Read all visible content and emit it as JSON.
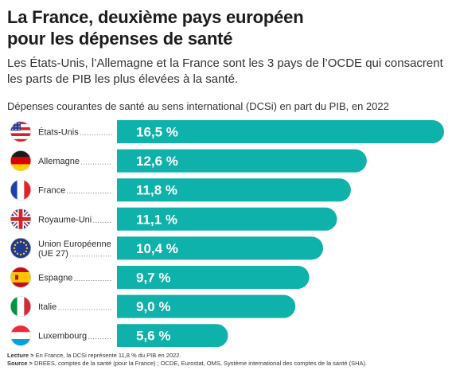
{
  "title_line1": "La France, deuxième pays européen",
  "title_line2": "pour les dépenses de santé",
  "subtitle": "Les États-Unis, l’Allemagne et la France sont les 3 pays de l’OCDE qui consacrent les parts de PIB les plus élevées à la santé.",
  "footer": {
    "lecture_label": "Lecture >",
    "lecture_text": "En France, la DCSi représente 11,8 % du PIB en 2022.",
    "source_label": "Source >",
    "source_text": "DREES, comptes de la santé (pour la France) ; OCDE, Eurostat, OMS, Système international des comptes de la santé (SHA)."
  },
  "colors": {
    "bar": "#0fb1ab",
    "text": "#1e1e1e"
  },
  "chart_data": {
    "type": "bar",
    "orientation": "horizontal",
    "title": "Dépenses courantes de santé au sens international (DCSi) en part du PIB, en 2022",
    "categories": [
      "États-Unis",
      "Allemagne",
      "France",
      "Royaume-Uni",
      "Union Européenne (UE 27)",
      "Espagne",
      "Italie",
      "Luxembourg"
    ],
    "category_lines": [
      [
        "États-Unis"
      ],
      [
        "Allemagne"
      ],
      [
        "France"
      ],
      [
        "Royaume-Uni"
      ],
      [
        "Union Européenne",
        "(UE 27)"
      ],
      [
        "Espagne"
      ],
      [
        "Italie"
      ],
      [
        "Luxembourg"
      ]
    ],
    "flags": [
      "flag-us-icon",
      "flag-de-icon",
      "flag-fr-icon",
      "flag-uk-icon",
      "flag-eu-icon",
      "flag-es-icon",
      "flag-it-icon",
      "flag-lu-icon"
    ],
    "values": [
      16.5,
      12.6,
      11.8,
      11.1,
      10.4,
      9.7,
      9.0,
      5.6
    ],
    "value_labels": [
      "16,5 %",
      "12,6 %",
      "11,8 %",
      "11,1 %",
      "10,4 %",
      "9,7 %",
      "9,0 %",
      "5,6 %"
    ],
    "unit": "% du PIB",
    "grid": false,
    "legend": "none"
  }
}
